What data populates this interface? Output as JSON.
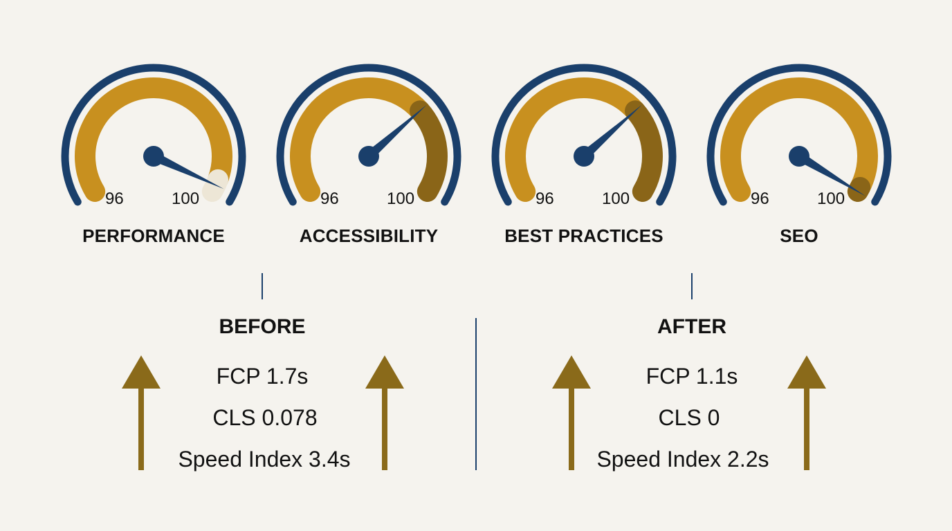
{
  "gauges": [
    {
      "label": "PERFORMANCE",
      "min_label": "96",
      "max_label": "100",
      "needle_value": 99.9,
      "highlight": "light"
    },
    {
      "label": "ACCESSIBILITY",
      "min_label": "96",
      "max_label": "100",
      "needle_value": 98.8,
      "highlight": "dark"
    },
    {
      "label": "BEST PRACTICES",
      "min_label": "96",
      "max_label": "100",
      "needle_value": 98.8,
      "highlight": "dark"
    },
    {
      "label": "SEO",
      "min_label": "96",
      "max_label": "100",
      "needle_value": 100,
      "highlight": "dark"
    }
  ],
  "before": {
    "title": "BEFORE",
    "metrics": [
      "FCP 1.7s",
      "CLS 0.078",
      "Speed Index 3.4s"
    ]
  },
  "after": {
    "title": "AFTER",
    "metrics": [
      "FCP 1.1s",
      "CLS 0",
      "Speed Index 2.2s"
    ]
  },
  "colors": {
    "navy": "#1a3f6b",
    "gold": "#c8901f",
    "dark_gold": "#8a6518",
    "arrow": "#8a6a1a",
    "light": "#ede6d6",
    "background": "#f5f3ee"
  },
  "icons": [
    "gauge-icon",
    "needle-icon",
    "arrow-up-icon"
  ]
}
